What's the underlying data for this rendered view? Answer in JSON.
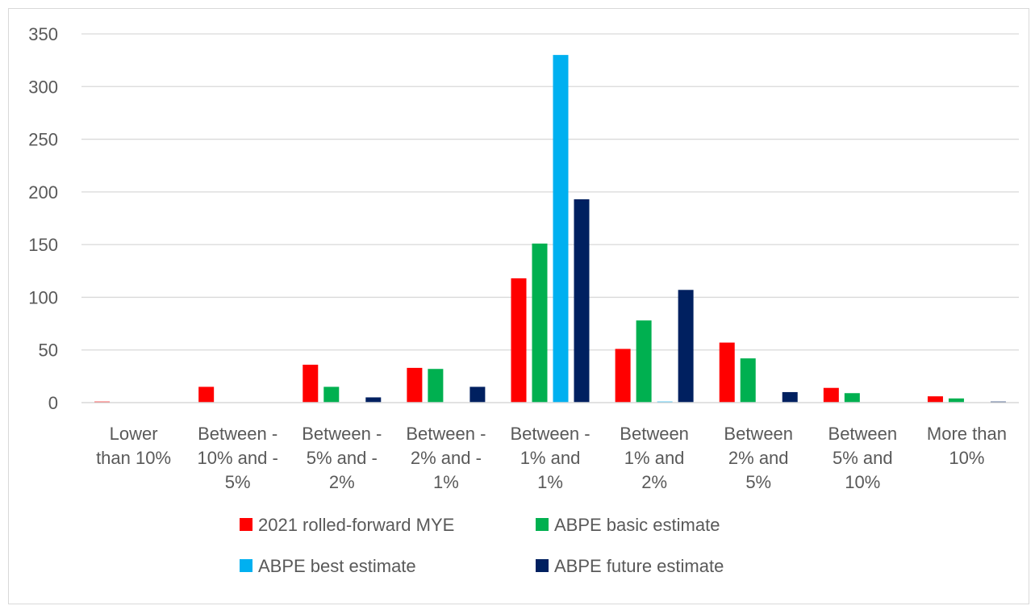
{
  "chart_data": {
    "type": "bar",
    "title": "",
    "xlabel": "",
    "ylabel": "",
    "ylim": [
      0,
      350
    ],
    "yticks": [
      0,
      50,
      100,
      150,
      200,
      250,
      300,
      350
    ],
    "grid": true,
    "legend_position": "bottom",
    "categories": [
      [
        "Lower",
        "than 10%"
      ],
      [
        "Between -",
        "10% and -",
        "5%"
      ],
      [
        "Between -",
        "5% and -",
        "2%"
      ],
      [
        "Between -",
        "2% and -",
        "1%"
      ],
      [
        "Between -",
        "1% and",
        "1%"
      ],
      [
        "Between",
        "1% and",
        "2%"
      ],
      [
        "Between",
        "2% and",
        "5%"
      ],
      [
        "Between",
        "5% and",
        "10%"
      ],
      [
        "More than",
        "10%"
      ]
    ],
    "series": [
      {
        "name": "2021 rolled-forward MYE",
        "color": "#ff0000",
        "values": [
          1,
          15,
          36,
          33,
          118,
          51,
          57,
          14,
          6
        ]
      },
      {
        "name": "ABPE basic estimate",
        "color": "#00b050",
        "values": [
          0,
          0,
          15,
          32,
          151,
          78,
          42,
          9,
          4
        ]
      },
      {
        "name": "ABPE best estimate",
        "color": "#00b0f0",
        "values": [
          0,
          0,
          0,
          0,
          330,
          1,
          0,
          0,
          0
        ]
      },
      {
        "name": "ABPE future estimate",
        "color": "#002060",
        "values": [
          0,
          0,
          5,
          15,
          193,
          107,
          10,
          0,
          1
        ]
      }
    ]
  }
}
